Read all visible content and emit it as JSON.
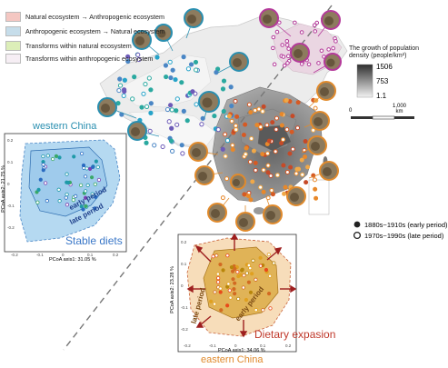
{
  "legend": {
    "items": [
      {
        "label": "Natural ecosystem → Anthropogenic ecosystem",
        "color": "#f4c7c2"
      },
      {
        "label": "Anthropogenic ecosystem → Natural ecosystem",
        "color": "#c6ddea"
      },
      {
        "label": "Transforms within natural ecosystem",
        "color": "#dceeb8"
      },
      {
        "label": "Transforms within anthropogenic ecosystem",
        "color": "#f6eef4"
      }
    ]
  },
  "density": {
    "title_line1": "The growth of population",
    "title_line2": "density (people/km²)",
    "max": "1506",
    "mid": "753",
    "min": "1.1"
  },
  "scalebar": {
    "zero": "0",
    "end": "1,000",
    "unit": "km"
  },
  "periods": {
    "early": "1880s~1910s (early period)",
    "late": "1970s~1990s (late period)"
  },
  "west": {
    "title": "western China",
    "axis_y": "PCoA axis2: 21.75 %",
    "axis_x": "PCoA axis1: 31.05 %",
    "early": "early period",
    "late": "late period",
    "caption": "Stable diets",
    "yticks": [
      "0.2",
      "0.1",
      "0",
      "-0.1",
      "-0.2"
    ],
    "xticks": [
      "-0.2",
      "-0.1",
      "0",
      "0.1",
      "0.2"
    ]
  },
  "east": {
    "title": "eastern China",
    "axis_y": "PCoA axis2: 23.28 %",
    "axis_x": "PCoA axis1: 34.06 %",
    "early": "early period",
    "late": "late period",
    "caption": "Dietary expasion",
    "yticks": [
      "0.2",
      "0.1",
      "0",
      "-0.1",
      "-0.2"
    ],
    "xticks": [
      "-0.2",
      "-0.1",
      "0",
      "0.1",
      "0.2"
    ]
  },
  "colors": {
    "west_accent": "#2a8fb0",
    "west_caption": "#3b78c8",
    "east_accent": "#e08a2c",
    "east_caption": "#c0392b",
    "arrow": "#9e1f1f"
  }
}
